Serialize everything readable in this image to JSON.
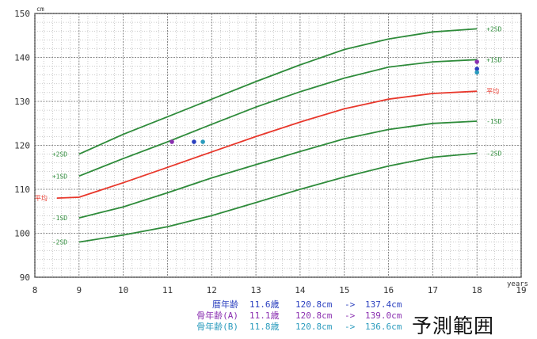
{
  "chart_data": {
    "type": "line",
    "title": "",
    "xlabel": "years",
    "ylabel": "cm",
    "xlim": [
      8,
      19
    ],
    "ylim": [
      90,
      150
    ],
    "x_ticks": [
      8,
      9,
      10,
      11,
      12,
      13,
      14,
      15,
      16,
      17,
      18,
      19
    ],
    "y_ticks": [
      90,
      100,
      110,
      120,
      130,
      140,
      150
    ],
    "grid": true,
    "series": [
      {
        "name": "+2SD",
        "color": "#2e8b3a",
        "label_left": "+2SD",
        "label_right": "+2SD",
        "points": [
          [
            9,
            118
          ],
          [
            10,
            122.5
          ],
          [
            11,
            126.5
          ],
          [
            12,
            130.5
          ],
          [
            13,
            134.5
          ],
          [
            14,
            138.3
          ],
          [
            15,
            141.8
          ],
          [
            16,
            144.2
          ],
          [
            17,
            145.8
          ],
          [
            18,
            146.5
          ]
        ]
      },
      {
        "name": "+1SD",
        "color": "#2e8b3a",
        "label_left": "+1SD",
        "label_right": "+1SD",
        "points": [
          [
            9,
            113
          ],
          [
            10,
            117
          ],
          [
            11,
            120.8
          ],
          [
            12,
            124.8
          ],
          [
            13,
            128.7
          ],
          [
            14,
            132.2
          ],
          [
            15,
            135.3
          ],
          [
            16,
            137.8
          ],
          [
            17,
            139
          ],
          [
            18,
            139.5
          ]
        ]
      },
      {
        "name": "mean",
        "color": "#e8372b",
        "label_left": "平均",
        "label_right": "平均",
        "points": [
          [
            8.5,
            108
          ],
          [
            9,
            108.2
          ],
          [
            10,
            111.5
          ],
          [
            11,
            115
          ],
          [
            12,
            118.5
          ],
          [
            13,
            122
          ],
          [
            14,
            125.3
          ],
          [
            15,
            128.3
          ],
          [
            16,
            130.5
          ],
          [
            17,
            131.8
          ],
          [
            18,
            132.3
          ]
        ]
      },
      {
        "name": "-1SD",
        "color": "#2e8b3a",
        "label_left": "-1SD",
        "label_right": "-1SD",
        "points": [
          [
            9,
            103.5
          ],
          [
            10,
            106
          ],
          [
            11,
            109.2
          ],
          [
            12,
            112.6
          ],
          [
            13,
            115.6
          ],
          [
            14,
            118.6
          ],
          [
            15,
            121.5
          ],
          [
            16,
            123.6
          ],
          [
            17,
            125
          ],
          [
            18,
            125.5
          ]
        ]
      },
      {
        "name": "-2SD",
        "color": "#2e8b3a",
        "label_left": "-2SD",
        "label_right": "-2SD",
        "points": [
          [
            9,
            98
          ],
          [
            10,
            99.6
          ],
          [
            11,
            101.5
          ],
          [
            12,
            104
          ],
          [
            13,
            107
          ],
          [
            14,
            110
          ],
          [
            15,
            112.8
          ],
          [
            16,
            115.3
          ],
          [
            17,
            117.3
          ],
          [
            18,
            118.2
          ]
        ]
      }
    ],
    "markers": [
      {
        "name": "暦年齢",
        "x": 11.6,
        "y": 120.8,
        "color": "#2a3fbf"
      },
      {
        "name": "骨年齢(A)",
        "x": 11.1,
        "y": 120.8,
        "color": "#8a2fb0"
      },
      {
        "name": "骨年齢(B)",
        "x": 11.8,
        "y": 120.8,
        "color": "#2a9bbd"
      },
      {
        "name": "暦年齢 predicted",
        "x": 18,
        "y": 137.4,
        "color": "#2a3fbf"
      },
      {
        "name": "骨年齢(A) predicted",
        "x": 18,
        "y": 139.0,
        "color": "#8a2fb0"
      },
      {
        "name": "骨年齢(B) predicted",
        "x": 18,
        "y": 136.6,
        "color": "#2a9bbd"
      }
    ]
  },
  "legend": [
    {
      "label": "暦年齢",
      "age": "11.6歳",
      "from": "120.8cm",
      "arrow": "->",
      "to": "137.4cm",
      "color": "#2a3fbf"
    },
    {
      "label": "骨年齢(A)",
      "age": "11.1歳",
      "from": "120.8cm",
      "arrow": "->",
      "to": "139.0cm",
      "color": "#8a2fb0"
    },
    {
      "label": "骨年齢(B)",
      "age": "11.8歳",
      "from": "120.8cm",
      "arrow": "->",
      "to": "136.6cm",
      "color": "#2a9bbd"
    }
  ],
  "caption": "予測範囲"
}
